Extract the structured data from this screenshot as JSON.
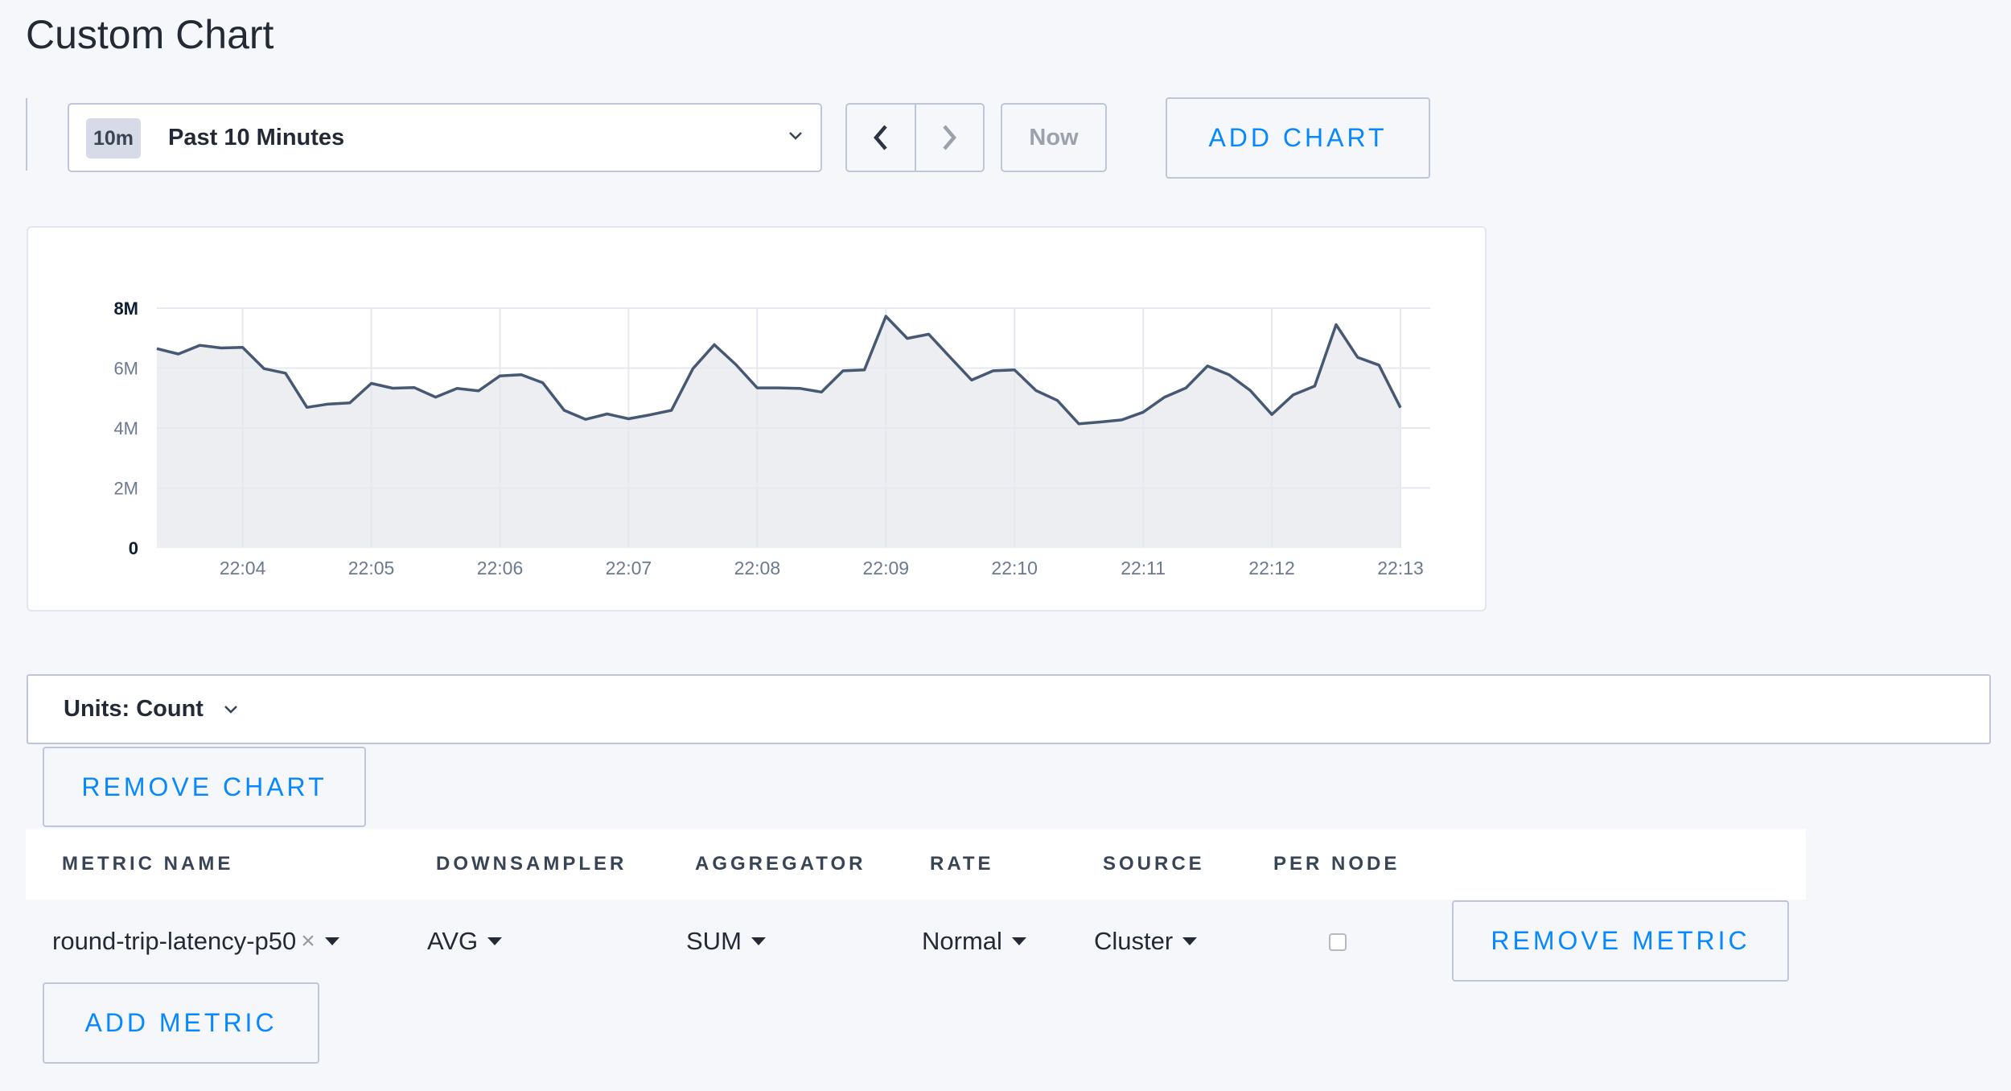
{
  "page": {
    "title": "Custom Chart"
  },
  "time_range": {
    "badge": "10m",
    "label": "Past 10 Minutes",
    "now_label": "Now",
    "prev_icon": "chevron-left-icon",
    "next_icon": "chevron-right-icon"
  },
  "toolbar": {
    "add_chart_label": "ADD CHART"
  },
  "units": {
    "label": "Units: Count"
  },
  "chart_actions": {
    "remove_chart_label": "REMOVE CHART"
  },
  "metrics_table": {
    "headers": [
      "METRIC NAME",
      "DOWNSAMPLER",
      "AGGREGATOR",
      "RATE",
      "SOURCE",
      "PER NODE"
    ],
    "rows": [
      {
        "metric_name": "round-trip-latency-p50",
        "downsampler": "AVG",
        "aggregator": "SUM",
        "rate": "Normal",
        "source": "Cluster",
        "per_node": false,
        "remove_label": "REMOVE METRIC"
      }
    ],
    "add_metric_label": "ADD METRIC"
  },
  "colors": {
    "accent": "#0788ff",
    "line": "#475872",
    "fill": "#eceef2",
    "grid": "#e5e8ef",
    "background": "#f5f7fa"
  },
  "chart_data": {
    "type": "area",
    "title": "",
    "xlabel": "",
    "ylabel": "",
    "ylim": [
      0,
      8000000
    ],
    "y_ticks": [
      {
        "value": 0,
        "label": "0"
      },
      {
        "value": 2000000,
        "label": "2M"
      },
      {
        "value": 4000000,
        "label": "4M"
      },
      {
        "value": 6000000,
        "label": "6M"
      },
      {
        "value": 8000000,
        "label": "8M"
      }
    ],
    "x_ticks": [
      "22:04",
      "22:05",
      "22:06",
      "22:07",
      "22:08",
      "22:09",
      "22:10",
      "22:11",
      "22:12",
      "22:13"
    ],
    "x_range": [
      "22:03:20",
      "22:13:00"
    ],
    "grid": true,
    "series": [
      {
        "x": [
          "22:03:20",
          "22:03:30",
          "22:03:40",
          "22:03:50",
          "22:04:00",
          "22:04:10",
          "22:04:20",
          "22:04:30",
          "22:04:40",
          "22:04:50",
          "22:05:00",
          "22:05:10",
          "22:05:20",
          "22:05:30",
          "22:05:40",
          "22:05:50",
          "22:06:00",
          "22:06:10",
          "22:06:20",
          "22:06:30",
          "22:06:40",
          "22:06:50",
          "22:07:00",
          "22:07:10",
          "22:07:20",
          "22:07:30",
          "22:07:40",
          "22:07:50",
          "22:08:00",
          "22:08:10",
          "22:08:20",
          "22:08:30",
          "22:08:40",
          "22:08:50",
          "22:09:00",
          "22:09:10",
          "22:09:20",
          "22:09:30",
          "22:09:40",
          "22:09:50",
          "22:10:00",
          "22:10:10",
          "22:10:20",
          "22:10:30",
          "22:10:40",
          "22:10:50",
          "22:11:00",
          "22:11:10",
          "22:11:20",
          "22:11:30",
          "22:11:40",
          "22:11:50",
          "22:12:00",
          "22:12:10",
          "22:12:20",
          "22:12:30",
          "22:12:40",
          "22:12:50",
          "22:13:00"
        ],
        "values": [
          6650000,
          6470000,
          6760000,
          6670000,
          6690000,
          5980000,
          5830000,
          4690000,
          4800000,
          4840000,
          5490000,
          5330000,
          5350000,
          5030000,
          5320000,
          5240000,
          5740000,
          5780000,
          5510000,
          4590000,
          4290000,
          4470000,
          4310000,
          4440000,
          4590000,
          5980000,
          6780000,
          6120000,
          5340000,
          5340000,
          5320000,
          5200000,
          5910000,
          5940000,
          7730000,
          6990000,
          7130000,
          6360000,
          5600000,
          5910000,
          5940000,
          5250000,
          4920000,
          4140000,
          4200000,
          4270000,
          4530000,
          5030000,
          5340000,
          6070000,
          5780000,
          5250000,
          4450000,
          5110000,
          5400000,
          7450000,
          6360000,
          6100000,
          4680000
        ]
      }
    ]
  }
}
